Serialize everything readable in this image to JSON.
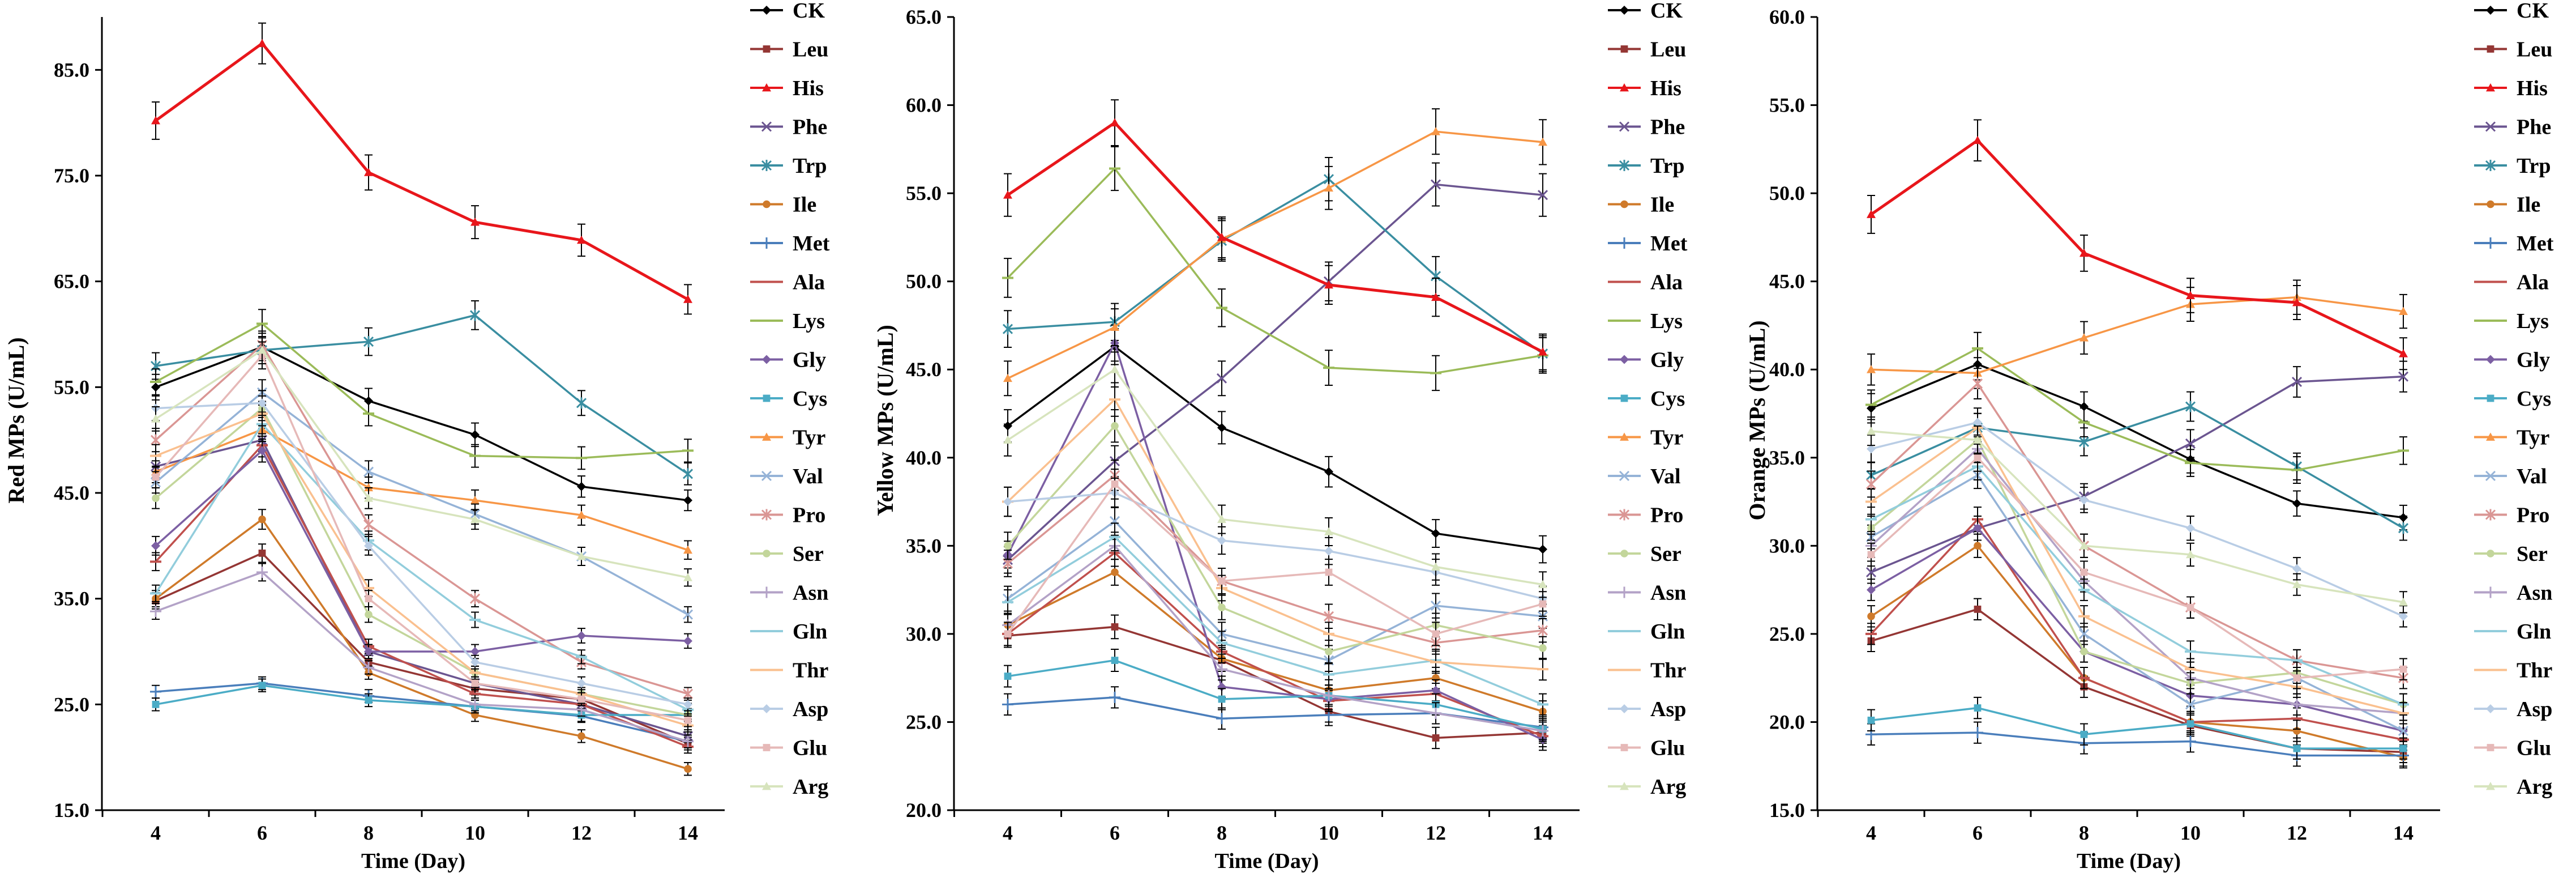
{
  "chart_data": [
    {
      "type": "line",
      "title": "",
      "xlabel": "Time (Day)",
      "ylabel": "Red MPs (U/mL)",
      "x": [
        4,
        6,
        8,
        10,
        12,
        14
      ],
      "ylim": [
        15,
        90
      ],
      "yticks": [
        15,
        25,
        35,
        45,
        55,
        65,
        75,
        85
      ],
      "ytick_labels": [
        "15.0",
        "25.0",
        "35.0",
        "45.0",
        "55.0",
        "65.0",
        "75.0",
        "85.0"
      ],
      "legend_position": "right",
      "series": [
        {
          "name": "CK",
          "values": [
            55.0,
            58.8,
            53.7,
            50.5,
            45.6,
            44.3
          ]
        },
        {
          "name": "Leu",
          "values": [
            34.8,
            39.3,
            29.0,
            26.5,
            25.5,
            21.3
          ]
        },
        {
          "name": "His",
          "values": [
            80.2,
            87.5,
            75.3,
            70.6,
            68.9,
            63.3
          ]
        },
        {
          "name": "Phe",
          "values": [
            47.5,
            50.0,
            30.0,
            27.0,
            25.0,
            22.0
          ]
        },
        {
          "name": "Trp",
          "values": [
            57.0,
            58.5,
            59.3,
            61.8,
            53.5,
            46.8
          ]
        },
        {
          "name": "Ile",
          "values": [
            35.0,
            42.5,
            28.0,
            24.0,
            22.0,
            18.9
          ]
        },
        {
          "name": "Met",
          "values": [
            26.2,
            27.0,
            25.8,
            24.8,
            23.9,
            21.5
          ]
        },
        {
          "name": "Ala",
          "values": [
            38.5,
            49.5,
            30.5,
            26.0,
            25.0,
            21.0
          ]
        },
        {
          "name": "Lys",
          "values": [
            55.5,
            61.0,
            52.5,
            48.5,
            48.3,
            49.0
          ]
        },
        {
          "name": "Gly",
          "values": [
            40.0,
            49.0,
            30.0,
            30.0,
            31.5,
            31.0
          ]
        },
        {
          "name": "Cys",
          "values": [
            25.0,
            26.8,
            25.4,
            24.8,
            24.0,
            24.0
          ]
        },
        {
          "name": "Tyr",
          "values": [
            47.0,
            51.0,
            45.5,
            44.3,
            42.9,
            39.6
          ]
        },
        {
          "name": "Val",
          "values": [
            46.0,
            54.5,
            47.0,
            43.0,
            39.0,
            33.5
          ]
        },
        {
          "name": "Pro",
          "values": [
            50.0,
            59.0,
            42.0,
            35.0,
            29.0,
            26.0
          ]
        },
        {
          "name": "Ser",
          "values": [
            44.5,
            53.0,
            33.5,
            28.0,
            26.0,
            24.0
          ]
        },
        {
          "name": "Asn",
          "values": [
            33.8,
            37.5,
            28.5,
            25.0,
            24.5,
            21.5
          ]
        },
        {
          "name": "Gln",
          "values": [
            35.5,
            51.5,
            40.5,
            33.0,
            29.5,
            24.5
          ]
        },
        {
          "name": "Thr",
          "values": [
            48.5,
            52.5,
            36.0,
            28.0,
            26.0,
            23.0
          ]
        },
        {
          "name": "Asp",
          "values": [
            53.0,
            53.5,
            40.0,
            29.0,
            27.0,
            25.0
          ]
        },
        {
          "name": "Glu",
          "values": [
            46.5,
            58.0,
            35.0,
            27.0,
            25.5,
            23.5
          ]
        },
        {
          "name": "Arg",
          "values": [
            52.0,
            58.5,
            44.5,
            42.5,
            39.0,
            37.0
          ]
        }
      ]
    },
    {
      "type": "line",
      "title": "",
      "xlabel": "Time (Day)",
      "ylabel": "Yellow MPs (U/mL)",
      "x": [
        4,
        6,
        8,
        10,
        12,
        14
      ],
      "ylim": [
        20,
        65
      ],
      "yticks": [
        20,
        25,
        30,
        35,
        40,
        45,
        50,
        55,
        60,
        65
      ],
      "ytick_labels": [
        "20.0",
        "25.0",
        "30.0",
        "35.0",
        "40.0",
        "45.0",
        "50.0",
        "55.0",
        "60.0",
        "65.0"
      ],
      "legend_position": "right",
      "series": [
        {
          "name": "CK",
          "values": [
            41.8,
            46.3,
            41.7,
            39.2,
            35.7,
            34.8
          ]
        },
        {
          "name": "Leu",
          "values": [
            29.9,
            30.4,
            28.5,
            25.6,
            24.1,
            24.4
          ]
        },
        {
          "name": "His",
          "values": [
            54.9,
            59.0,
            52.5,
            49.8,
            49.1,
            46.0
          ]
        },
        {
          "name": "Phe",
          "values": [
            34.2,
            39.8,
            44.5,
            50.0,
            55.5,
            54.9
          ]
        },
        {
          "name": "Trp",
          "values": [
            47.3,
            47.7,
            52.3,
            55.8,
            50.3,
            45.9
          ]
        },
        {
          "name": "Ile",
          "values": [
            30.5,
            33.5,
            28.6,
            26.8,
            27.5,
            25.6
          ]
        },
        {
          "name": "Met",
          "values": [
            26.0,
            26.4,
            25.2,
            25.4,
            25.5,
            24.7
          ]
        },
        {
          "name": "Ala",
          "values": [
            30.0,
            34.6,
            29.0,
            26.2,
            26.6,
            24.2
          ]
        },
        {
          "name": "Lys",
          "values": [
            50.2,
            56.4,
            48.5,
            45.1,
            44.8,
            45.8
          ]
        },
        {
          "name": "Gly",
          "values": [
            34.5,
            46.5,
            27.0,
            26.3,
            26.8,
            24.0
          ]
        },
        {
          "name": "Cys",
          "values": [
            27.6,
            28.5,
            26.3,
            26.5,
            26.0,
            24.6
          ]
        },
        {
          "name": "Tyr",
          "values": [
            44.5,
            47.4,
            52.4,
            55.3,
            58.5,
            57.9
          ]
        },
        {
          "name": "Val",
          "values": [
            32.0,
            36.4,
            30.0,
            28.5,
            31.6,
            31.0
          ]
        },
        {
          "name": "Pro",
          "values": [
            34.0,
            39.0,
            33.0,
            31.0,
            29.5,
            30.2
          ]
        },
        {
          "name": "Ser",
          "values": [
            35.0,
            41.8,
            31.5,
            29.0,
            30.5,
            29.2
          ]
        },
        {
          "name": "Asn",
          "values": [
            30.5,
            35.0,
            28.0,
            26.5,
            25.5,
            24.5
          ]
        },
        {
          "name": "Gln",
          "values": [
            31.8,
            35.5,
            29.5,
            27.7,
            28.5,
            26.0
          ]
        },
        {
          "name": "Thr",
          "values": [
            37.5,
            43.3,
            32.6,
            30.0,
            28.4,
            28.0
          ]
        },
        {
          "name": "Asp",
          "values": [
            37.5,
            38.0,
            35.3,
            34.7,
            33.5,
            32.0
          ]
        },
        {
          "name": "Glu",
          "values": [
            30.0,
            38.5,
            33.0,
            33.5,
            30.0,
            31.7
          ]
        },
        {
          "name": "Arg",
          "values": [
            41.0,
            45.0,
            36.5,
            35.8,
            33.8,
            32.8
          ]
        }
      ]
    },
    {
      "type": "line",
      "title": "",
      "xlabel": "Time (Day)",
      "ylabel": "Orange MPs (U/mL)",
      "x": [
        4,
        6,
        8,
        10,
        12,
        14
      ],
      "ylim": [
        15,
        60
      ],
      "yticks": [
        15,
        20,
        25,
        30,
        35,
        40,
        45,
        50,
        55,
        60
      ],
      "ytick_labels": [
        "15.0",
        "20.0",
        "25.0",
        "30.0",
        "35.0",
        "40.0",
        "45.0",
        "50.0",
        "55.0",
        "60.0"
      ],
      "legend_position": "right",
      "series": [
        {
          "name": "CK",
          "values": [
            37.8,
            40.3,
            37.9,
            34.9,
            32.4,
            31.6
          ]
        },
        {
          "name": "Leu",
          "values": [
            24.6,
            26.4,
            22.0,
            19.8,
            18.5,
            18.3
          ]
        },
        {
          "name": "His",
          "values": [
            48.8,
            53.0,
            46.6,
            44.2,
            43.8,
            40.9
          ]
        },
        {
          "name": "Phe",
          "values": [
            28.5,
            31.0,
            32.8,
            35.8,
            39.3,
            39.6
          ]
        },
        {
          "name": "Trp",
          "values": [
            34.0,
            36.7,
            35.9,
            37.9,
            34.5,
            31.0
          ]
        },
        {
          "name": "Ile",
          "values": [
            26.0,
            30.0,
            22.5,
            20.0,
            19.5,
            18.0
          ]
        },
        {
          "name": "Met",
          "values": [
            19.3,
            19.4,
            18.8,
            18.9,
            18.1,
            18.1
          ]
        },
        {
          "name": "Ala",
          "values": [
            25.0,
            31.5,
            22.5,
            20.0,
            20.2,
            19.0
          ]
        },
        {
          "name": "Lys",
          "values": [
            38.0,
            41.2,
            37.0,
            34.7,
            34.3,
            35.4
          ]
        },
        {
          "name": "Gly",
          "values": [
            27.5,
            31.0,
            24.0,
            21.5,
            21.0,
            19.5
          ]
        },
        {
          "name": "Cys",
          "values": [
            20.1,
            20.8,
            19.3,
            19.9,
            18.5,
            18.5
          ]
        },
        {
          "name": "Tyr",
          "values": [
            40.0,
            39.8,
            41.8,
            43.7,
            44.1,
            43.3
          ]
        },
        {
          "name": "Val",
          "values": [
            30.5,
            34.0,
            25.0,
            21.0,
            22.5,
            19.5
          ]
        },
        {
          "name": "Pro",
          "values": [
            33.5,
            39.2,
            30.0,
            26.5,
            23.5,
            22.5
          ]
        },
        {
          "name": "Ser",
          "values": [
            31.0,
            36.0,
            24.0,
            22.2,
            22.8,
            21.0
          ]
        },
        {
          "name": "Asn",
          "values": [
            30.0,
            35.5,
            28.0,
            22.5,
            21.0,
            20.5
          ]
        },
        {
          "name": "Gln",
          "values": [
            31.5,
            34.5,
            27.5,
            24.0,
            23.5,
            21.0
          ]
        },
        {
          "name": "Thr",
          "values": [
            32.5,
            36.7,
            26.0,
            23.0,
            22.0,
            20.5
          ]
        },
        {
          "name": "Asp",
          "values": [
            35.5,
            37.0,
            32.6,
            31.0,
            28.7,
            26.0
          ]
        },
        {
          "name": "Glu",
          "values": [
            29.5,
            35.0,
            28.5,
            26.5,
            22.5,
            23.0
          ]
        },
        {
          "name": "Arg",
          "values": [
            36.5,
            36.0,
            30.0,
            29.5,
            27.8,
            26.8
          ]
        }
      ]
    }
  ],
  "series_colors": {
    "CK": "#000000",
    "Leu": "#943634",
    "His": "#e8161b",
    "Phe": "#6b5590",
    "Trp": "#3a8ea1",
    "Ile": "#cf7a2a",
    "Met": "#4a7ebb",
    "Ala": "#c0504d",
    "Lys": "#9bbb59",
    "Gly": "#7c5fa3",
    "Cys": "#4bacc6",
    "Tyr": "#f79646",
    "Val": "#95b3d7",
    "Pro": "#da9694",
    "Ser": "#c3d69b",
    "Asn": "#b3a2c7",
    "Gln": "#92cddc",
    "Thr": "#fac08f",
    "Asp": "#b9cde5",
    "Glu": "#e6b9b8",
    "Arg": "#d7e4bd"
  },
  "series_markers": {
    "CK": "diamond",
    "Leu": "square",
    "His": "triangle",
    "Phe": "x",
    "Trp": "star",
    "Ile": "circle",
    "Met": "plus",
    "Ala": "dash",
    "Lys": "dash",
    "Gly": "diamond",
    "Cys": "square",
    "Tyr": "triangle",
    "Val": "x",
    "Pro": "star",
    "Ser": "circle",
    "Asn": "plus",
    "Gln": "dash",
    "Thr": "dash",
    "Asp": "diamond",
    "Glu": "square",
    "Arg": "triangle"
  }
}
